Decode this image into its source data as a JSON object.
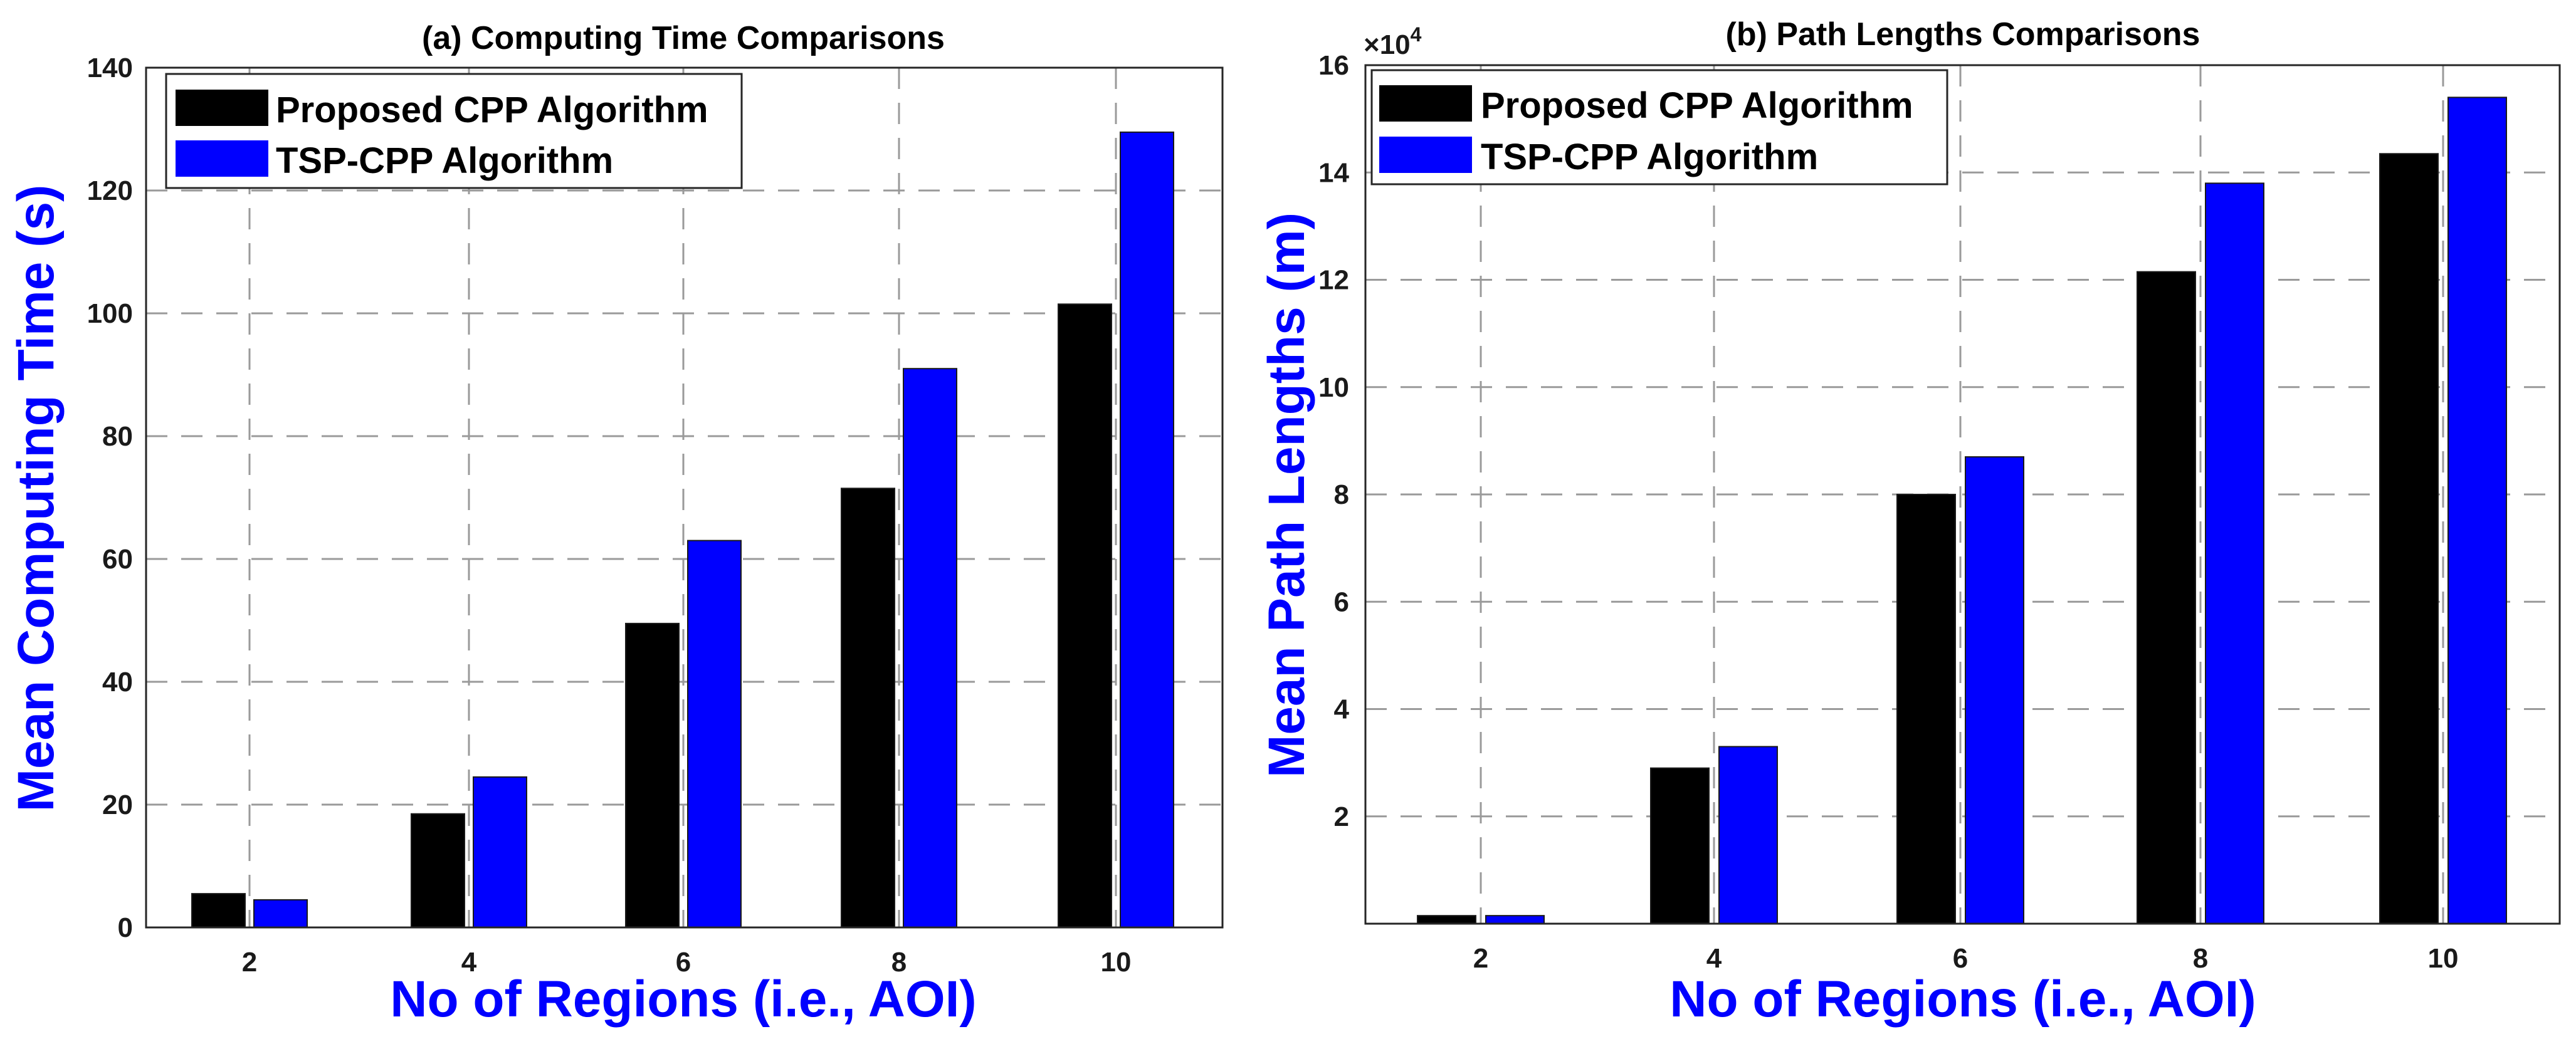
{
  "chart_data": [
    {
      "type": "bar",
      "title": "(a) Computing Time Comparisons",
      "xlabel": "No of Regions (i.e., AOI)",
      "ylabel": "Mean Computing Time (s)",
      "categories": [
        "2",
        "4",
        "6",
        "8",
        "10"
      ],
      "ylim": [
        0,
        140
      ],
      "yticks": [
        0,
        20,
        40,
        60,
        80,
        100,
        120,
        140
      ],
      "ytick_labels": [
        "0",
        "20",
        "40",
        "60",
        "80",
        "100",
        "120",
        "140"
      ],
      "multiplier_label": "",
      "grid": true,
      "legend_position": "top-left",
      "series": [
        {
          "name": "Proposed CPP Algorithm",
          "color": "#000000",
          "values": [
            5.5,
            18.5,
            49.5,
            71.5,
            101.5
          ]
        },
        {
          "name": "TSP-CPP Algorithm",
          "color": "#0000ff",
          "values": [
            4.5,
            24.5,
            63,
            91,
            129.5
          ]
        }
      ]
    },
    {
      "type": "bar",
      "title": "(b) Path Lengths Comparisons",
      "xlabel": "No of Regions (i.e., AOI)",
      "ylabel": "Mean Path Lengths (m)",
      "categories": [
        "2",
        "4",
        "6",
        "8",
        "10"
      ],
      "ylim": [
        0,
        160000
      ],
      "yticks": [
        20000,
        40000,
        60000,
        80000,
        100000,
        120000,
        140000,
        160000
      ],
      "ytick_labels": [
        "2",
        "4",
        "6",
        "8",
        "10",
        "12",
        "14",
        "16"
      ],
      "multiplier_label": "×10",
      "multiplier_exponent": "4",
      "grid": true,
      "legend_position": "top-left",
      "series": [
        {
          "name": "Proposed CPP Algorithm",
          "color": "#000000",
          "values": [
            1500,
            29000,
            80000,
            121500,
            143500
          ]
        },
        {
          "name": "TSP-CPP Algorithm",
          "color": "#0000ff",
          "values": [
            1500,
            33000,
            87000,
            138000,
            154000
          ]
        }
      ]
    }
  ]
}
